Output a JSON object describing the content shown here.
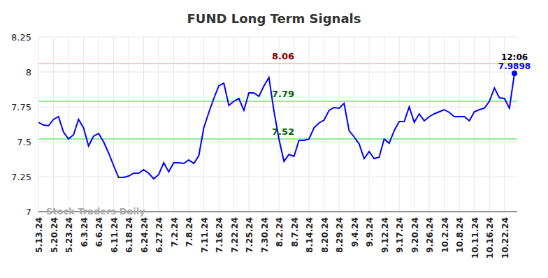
{
  "chart_data": {
    "type": "line",
    "title": "FUND Long Term Signals",
    "categories": [
      "5.13.24",
      null,
      null,
      "5.20.24",
      null,
      null,
      "5.23.24",
      null,
      null,
      "6.3.24",
      null,
      null,
      "6.6.24",
      null,
      null,
      "6.11.24",
      null,
      null,
      "6.18.24",
      null,
      null,
      "6.24.24",
      null,
      null,
      "6.27.24",
      null,
      null,
      "7.2.24",
      null,
      null,
      "7.8.24",
      null,
      null,
      "7.11.24",
      null,
      null,
      "7.16.24",
      null,
      null,
      "7.22.24",
      null,
      null,
      "7.25.24",
      null,
      null,
      "7.30.24",
      null,
      null,
      "8.2.24",
      null,
      null,
      "8.7.24",
      null,
      null,
      "8.14.24",
      null,
      null,
      "8.20.24",
      null,
      null,
      "8.29.24",
      null,
      null,
      "9.4.24",
      null,
      null,
      "9.9.24",
      null,
      null,
      "9.12.24",
      null,
      null,
      "9.17.24",
      null,
      null,
      "9.20.24",
      null,
      null,
      "9.26.24",
      null,
      null,
      "10.2.24",
      null,
      null,
      "10.8.24",
      null,
      null,
      "10.11.24",
      null,
      null,
      "10.16.24",
      null,
      null,
      "10.22.24",
      null,
      null
    ],
    "series": [
      {
        "name": "FUND",
        "color": "#0000ff",
        "values": [
          7.64,
          7.62,
          7.615,
          7.66,
          7.68,
          7.57,
          7.52,
          7.55,
          7.66,
          7.6,
          7.47,
          7.54,
          7.56,
          7.5,
          7.42,
          7.33,
          7.245,
          7.245,
          7.255,
          7.275,
          7.275,
          7.3,
          7.275,
          7.235,
          7.265,
          7.35,
          7.285,
          7.35,
          7.35,
          7.345,
          7.37,
          7.345,
          7.4,
          7.6,
          7.71,
          7.81,
          7.9,
          7.92,
          7.76,
          7.79,
          7.81,
          7.725,
          7.85,
          7.85,
          7.825,
          7.9,
          7.96,
          7.72,
          7.52,
          7.36,
          7.41,
          7.395,
          7.51,
          7.51,
          7.52,
          7.6,
          7.635,
          7.655,
          7.725,
          7.745,
          7.74,
          7.775,
          7.58,
          7.535,
          7.485,
          7.38,
          7.43,
          7.38,
          7.39,
          7.52,
          7.49,
          7.58,
          7.645,
          7.645,
          7.75,
          7.64,
          7.7,
          7.65,
          7.68,
          7.7,
          7.715,
          7.73,
          7.71,
          7.68,
          7.68,
          7.68,
          7.65,
          7.715,
          7.73,
          7.74,
          7.79,
          7.885,
          7.815,
          7.81,
          7.74,
          7.9898
        ]
      }
    ],
    "ylim": [
      7,
      8.25
    ],
    "yticks": [
      7,
      7.25,
      7.5,
      7.75,
      8,
      8.25
    ],
    "grid": true,
    "reference_lines": [
      {
        "value": 8.06,
        "color": "#ffc4c4",
        "label_color": "#8b0000"
      },
      {
        "value": 7.79,
        "color": "#90ee90",
        "label_color": "#006400"
      },
      {
        "value": 7.52,
        "color": "#90ee90",
        "label_color": "#006400"
      }
    ],
    "annotations": [
      {
        "text": "12:06"
      },
      {
        "text": "Stock Traders Daily"
      }
    ]
  }
}
